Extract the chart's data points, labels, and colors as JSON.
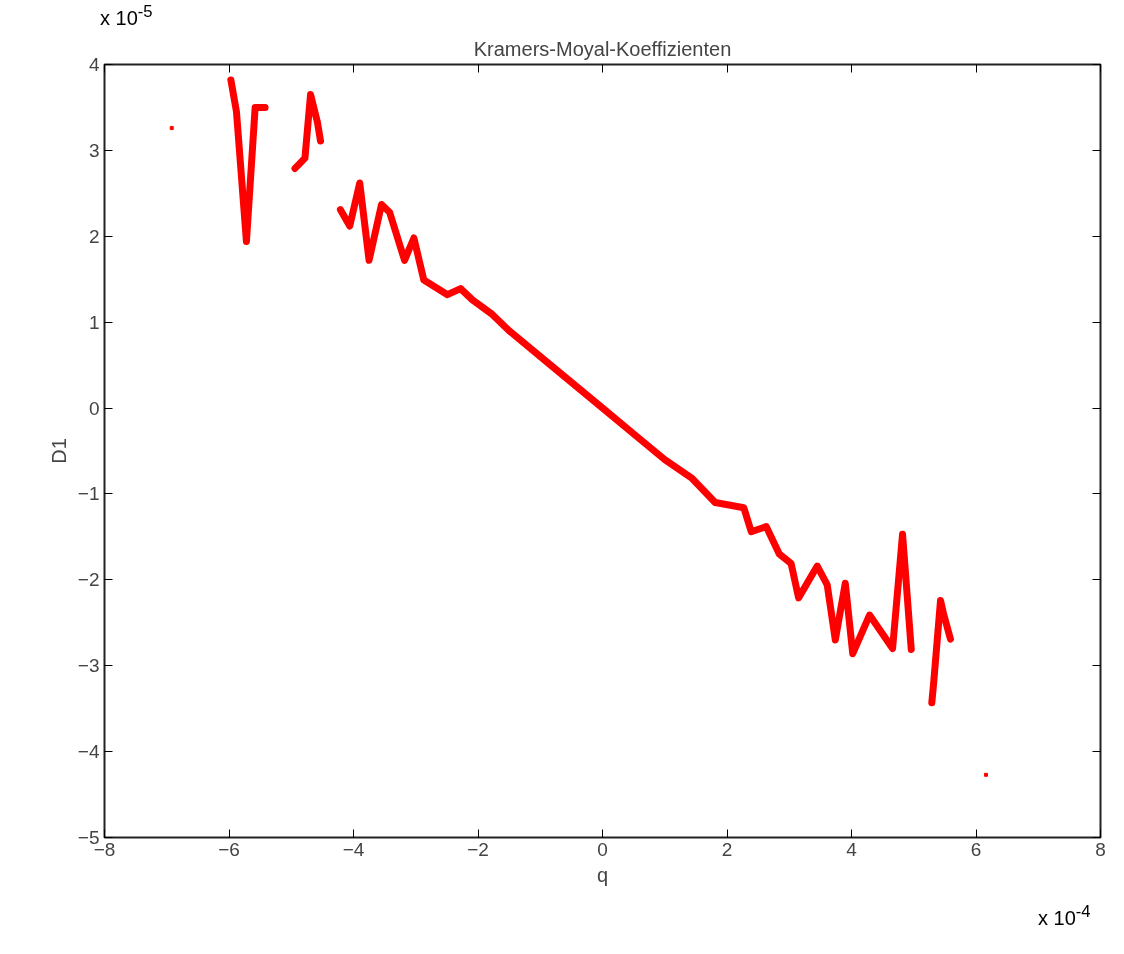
{
  "chart_data": {
    "type": "line",
    "title": "Kramers-Moyal-Koeffizienten",
    "xlabel": "q",
    "ylabel": "D1",
    "xlim": [
      -8,
      8
    ],
    "xticks": [
      -8,
      -6,
      -4,
      -2,
      0,
      2,
      4,
      6,
      8
    ],
    "ylim": [
      -5,
      4
    ],
    "yticks": [
      -5,
      -4,
      -3,
      -2,
      -1,
      0,
      1,
      2,
      3,
      4
    ],
    "grid": false,
    "line_style": "solid",
    "annotations": [
      "x 10$^{-5}$",
      "x 10$^{-4}$"
    ],
    "series": [
      {
        "color": "#ff0000",
        "marker": "none",
        "x": [
          -5.97,
          -5.88,
          -5.72,
          -5.58,
          -5.42,
          null,
          -4.94,
          -4.78,
          -4.69,
          -4.58,
          -4.53,
          null,
          -4.21,
          -4.06,
          -3.9,
          -3.75,
          -3.55,
          -3.42,
          -3.18,
          -3.03,
          -2.87,
          -2.49,
          -2.28,
          -2.09,
          -1.77,
          -1.5,
          -1.0,
          -0.5,
          0.0,
          0.5,
          1.0,
          1.44,
          1.81,
          2.27,
          2.39,
          2.63,
          2.84,
          3.03,
          3.15,
          3.45,
          3.61,
          3.74,
          3.9,
          4.02,
          4.29,
          4.66,
          4.82,
          4.96,
          null,
          5.29,
          5.32,
          5.43,
          5.48,
          5.59
        ],
        "values": [
          3.82,
          3.45,
          1.94,
          3.5,
          3.5,
          null,
          2.79,
          2.91,
          3.65,
          3.33,
          3.11,
          null,
          2.31,
          2.12,
          2.62,
          1.72,
          2.37,
          2.28,
          1.72,
          1.98,
          1.49,
          1.32,
          1.39,
          1.26,
          1.09,
          0.9,
          0.6,
          0.3,
          0.0,
          -0.3,
          -0.6,
          -0.82,
          -1.1,
          -1.16,
          -1.44,
          -1.38,
          -1.7,
          -1.81,
          -2.21,
          -1.84,
          -2.06,
          -2.7,
          -2.04,
          -2.86,
          -2.41,
          -2.8,
          -1.47,
          -2.81,
          null,
          -3.43,
          -3.2,
          -2.24,
          -2.4,
          -2.69
        ]
      },
      {
        "type": "scatter",
        "color": "#ff0000",
        "marker": "square",
        "x": [
          -6.92,
          6.16
        ],
        "values": [
          3.26,
          -4.27
        ]
      }
    ]
  }
}
